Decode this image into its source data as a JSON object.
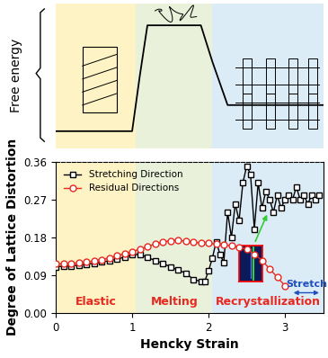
{
  "chart_data": {
    "type": "line",
    "xlabel": "Hencky Strain",
    "ylabel": "Degree of Lattice Distortion",
    "top_panel_label": "Free energy",
    "inset_label": "Stretch",
    "xlim": [
      0,
      3.5
    ],
    "xticks": [
      0,
      1,
      2,
      3
    ],
    "ylim": [
      0,
      0.36
    ],
    "yticks": [
      {
        "value": 0,
        "label": "0.00"
      },
      0.09,
      0.18,
      0.27,
      0.36
    ],
    "legend": "upper left",
    "regions": [
      {
        "label": "Elastic",
        "start": 0,
        "end": 1.05,
        "color": "#fdf3c4"
      },
      {
        "label": "Melting",
        "start": 1.05,
        "end": 2.05,
        "color": "#e9f1da"
      },
      {
        "label": "Recrystallization",
        "start": 2.05,
        "end": 3.5,
        "color": "#dcecf7"
      }
    ],
    "series": [
      {
        "name": "Stretching Direction",
        "color": "#000000",
        "marker": "square",
        "line_style": "solid",
        "x": [
          0,
          0.1,
          0.2,
          0.3,
          0.4,
          0.5,
          0.6,
          0.7,
          0.8,
          0.9,
          1.0,
          1.1,
          1.2,
          1.3,
          1.4,
          1.5,
          1.6,
          1.7,
          1.8,
          1.9,
          1.95,
          2.0,
          2.05,
          2.1,
          2.15,
          2.2,
          2.25,
          2.3,
          2.35,
          2.4,
          2.45,
          2.5,
          2.55,
          2.6,
          2.65,
          2.7,
          2.75,
          2.8,
          2.85,
          2.9,
          2.95,
          3.0,
          3.05,
          3.1,
          3.15,
          3.2,
          3.25,
          3.3,
          3.35,
          3.4,
          3.45
        ],
        "values": [
          0.11,
          0.111,
          0.112,
          0.114,
          0.116,
          0.118,
          0.121,
          0.124,
          0.128,
          0.133,
          0.138,
          0.14,
          0.132,
          0.125,
          0.118,
          0.11,
          0.102,
          0.095,
          0.08,
          0.075,
          0.075,
          0.1,
          0.13,
          0.17,
          0.14,
          0.12,
          0.24,
          0.18,
          0.26,
          0.22,
          0.31,
          0.35,
          0.33,
          0.2,
          0.31,
          0.25,
          0.29,
          0.27,
          0.24,
          0.28,
          0.25,
          0.27,
          0.28,
          0.27,
          0.3,
          0.27,
          0.28,
          0.26,
          0.28,
          0.27,
          0.28
        ]
      },
      {
        "name": "Residual Directions",
        "color": "#e8281e",
        "marker": "circle",
        "line_style": "solid",
        "x": [
          0,
          0.1,
          0.2,
          0.3,
          0.4,
          0.5,
          0.6,
          0.7,
          0.8,
          0.9,
          1.0,
          1.1,
          1.2,
          1.3,
          1.4,
          1.5,
          1.6,
          1.7,
          1.8,
          1.9,
          2.0,
          2.1,
          2.2,
          2.3,
          2.4,
          2.5,
          2.6,
          2.7,
          2.8,
          2.9,
          3.0
        ],
        "values": [
          0.117,
          0.117,
          0.118,
          0.119,
          0.121,
          0.124,
          0.127,
          0.131,
          0.136,
          0.141,
          0.146,
          0.152,
          0.158,
          0.164,
          0.169,
          0.172,
          0.173,
          0.171,
          0.168,
          0.167,
          0.166,
          0.164,
          0.162,
          0.16,
          0.156,
          0.152,
          0.14,
          0.125,
          0.105,
          0.085,
          0.065
        ]
      }
    ]
  }
}
